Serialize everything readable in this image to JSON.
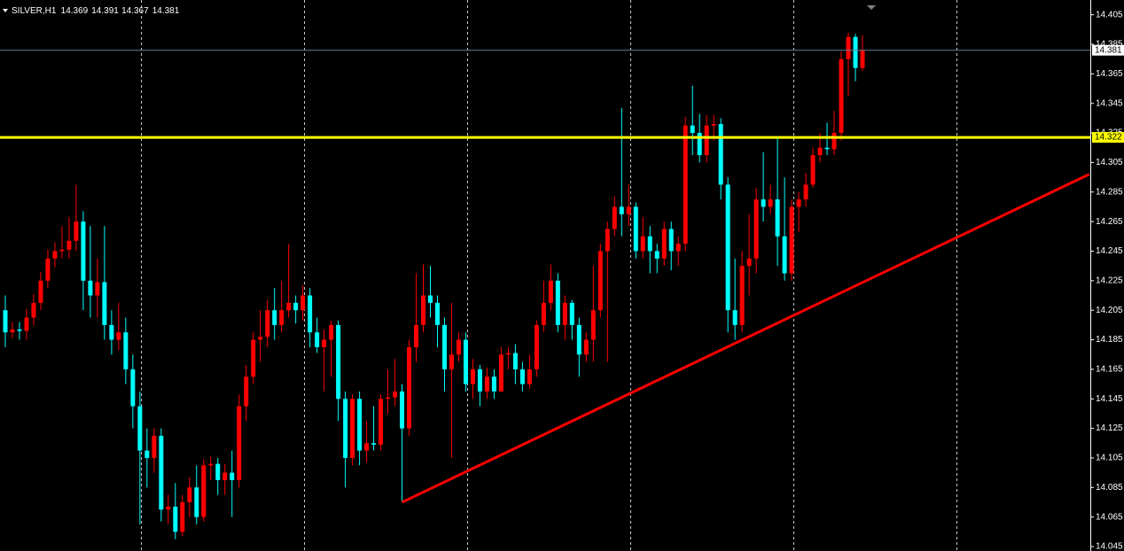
{
  "chart_data": {
    "type": "candlestick",
    "symbol": "SILVER,H1",
    "open": [
      14.205,
      14.19,
      14.192,
      14.191,
      14.2,
      14.21,
      14.225,
      14.24,
      14.245,
      14.246,
      14.252,
      14.265,
      14.225,
      14.215,
      14.224,
      14.195,
      14.185,
      14.19,
      14.165,
      14.14,
      14.11,
      14.105,
      14.12,
      14.07,
      14.072,
      14.055,
      14.075,
      14.085,
      14.065,
      14.1,
      14.101,
      14.09,
      14.095,
      14.09,
      14.14,
      14.16,
      14.185,
      14.187,
      14.205,
      14.195,
      14.205,
      14.21,
      14.205,
      14.215,
      14.19,
      14.18,
      14.185,
      14.195,
      14.145,
      14.105,
      14.145,
      14.11,
      14.115,
      14.114,
      14.145,
      14.146,
      14.15,
      14.125,
      14.18,
      14.195,
      14.215,
      14.21,
      14.195,
      14.165,
      14.175,
      14.185,
      14.155,
      14.165,
      14.15,
      14.16,
      14.15,
      14.175,
      14.176,
      14.165,
      14.155,
      14.165,
      14.195,
      14.21,
      14.225,
      14.195,
      14.21,
      14.195,
      14.175,
      14.185,
      14.205,
      14.245,
      14.26,
      14.275,
      14.27,
      14.275,
      14.245,
      14.255,
      14.245,
      14.24,
      14.26,
      14.245,
      14.25,
      14.33,
      14.325,
      14.31,
      14.33,
      14.331,
      14.29,
      14.205,
      14.195,
      14.235,
      14.24,
      14.28,
      14.275,
      14.28,
      14.255,
      14.23,
      14.275,
      14.28,
      14.29,
      14.31,
      14.315,
      14.314,
      14.325,
      14.375,
      14.39,
      14.369
    ],
    "high": [
      14.215,
      14.197,
      14.197,
      14.206,
      14.216,
      14.231,
      14.246,
      14.251,
      14.262,
      14.268,
      14.29,
      14.272,
      14.262,
      14.24,
      14.262,
      14.205,
      14.21,
      14.2,
      14.175,
      14.15,
      14.125,
      14.125,
      14.125,
      14.08,
      14.088,
      14.08,
      14.092,
      14.1,
      14.104,
      14.106,
      14.105,
      14.101,
      14.11,
      14.148,
      14.168,
      14.19,
      14.205,
      14.212,
      14.22,
      14.225,
      14.25,
      14.215,
      14.222,
      14.22,
      14.2,
      14.192,
      14.198,
      14.198,
      14.15,
      14.148,
      14.15,
      14.13,
      14.14,
      14.148,
      14.165,
      14.172,
      14.155,
      14.185,
      14.23,
      14.236,
      14.235,
      14.215,
      14.2,
      14.21,
      14.19,
      14.19,
      14.172,
      14.168,
      14.166,
      14.165,
      14.18,
      14.18,
      14.182,
      14.17,
      14.175,
      14.198,
      14.225,
      14.236,
      14.23,
      14.215,
      14.212,
      14.2,
      14.19,
      14.235,
      14.25,
      14.265,
      14.282,
      14.342,
      14.29,
      14.278,
      14.268,
      14.262,
      14.25,
      14.265,
      14.265,
      14.255,
      14.336,
      14.357,
      14.338,
      14.337,
      14.337,
      14.335,
      14.295,
      14.24,
      14.245,
      14.27,
      14.288,
      14.312,
      14.29,
      14.322,
      14.295,
      14.28,
      14.285,
      14.298,
      14.315,
      14.325,
      14.332,
      14.34,
      14.38,
      14.393,
      14.392,
      14.391
    ],
    "low": [
      14.18,
      14.186,
      14.185,
      14.185,
      14.195,
      14.205,
      14.22,
      14.234,
      14.24,
      14.24,
      14.245,
      14.205,
      14.2,
      14.2,
      14.185,
      14.175,
      14.178,
      14.155,
      14.125,
      14.06,
      14.085,
      14.095,
      14.062,
      14.06,
      14.05,
      14.052,
      14.065,
      14.06,
      14.062,
      14.09,
      14.08,
      14.08,
      14.065,
      14.085,
      14.13,
      14.155,
      14.17,
      14.18,
      14.185,
      14.19,
      14.2,
      14.196,
      14.198,
      14.18,
      14.176,
      14.15,
      14.16,
      14.13,
      14.085,
      14.1,
      14.1,
      14.102,
      14.11,
      14.11,
      14.135,
      14.14,
      14.075,
      14.12,
      14.17,
      14.19,
      14.2,
      14.18,
      14.15,
      14.105,
      14.17,
      14.15,
      14.145,
      14.14,
      14.145,
      14.145,
      14.15,
      14.165,
      14.155,
      14.15,
      14.152,
      14.16,
      14.19,
      14.205,
      14.19,
      14.185,
      14.185,
      14.16,
      14.17,
      14.17,
      14.2,
      14.17,
      14.255,
      14.255,
      14.262,
      14.24,
      14.24,
      14.23,
      14.23,
      14.235,
      14.232,
      14.235,
      14.245,
      14.31,
      14.305,
      14.305,
      14.32,
      14.28,
      14.19,
      14.185,
      14.19,
      14.215,
      14.23,
      14.265,
      14.27,
      14.235,
      14.225,
      14.225,
      14.258,
      14.275,
      14.288,
      14.305,
      14.31,
      14.31,
      14.32,
      14.35,
      14.36,
      14.367
    ],
    "close": [
      14.19,
      14.192,
      14.191,
      14.2,
      14.21,
      14.225,
      14.24,
      14.245,
      14.246,
      14.252,
      14.265,
      14.225,
      14.215,
      14.224,
      14.195,
      14.185,
      14.19,
      14.165,
      14.14,
      14.11,
      14.105,
      14.12,
      14.07,
      14.072,
      14.055,
      14.075,
      14.085,
      14.065,
      14.1,
      14.101,
      14.09,
      14.095,
      14.09,
      14.14,
      14.16,
      14.185,
      14.187,
      14.205,
      14.195,
      14.205,
      14.21,
      14.205,
      14.215,
      14.19,
      14.18,
      14.185,
      14.195,
      14.145,
      14.105,
      14.145,
      14.11,
      14.115,
      14.114,
      14.145,
      14.146,
      14.15,
      14.125,
      14.18,
      14.195,
      14.215,
      14.21,
      14.195,
      14.165,
      14.175,
      14.185,
      14.155,
      14.165,
      14.15,
      14.16,
      14.15,
      14.175,
      14.176,
      14.165,
      14.155,
      14.165,
      14.195,
      14.21,
      14.225,
      14.195,
      14.21,
      14.195,
      14.175,
      14.185,
      14.205,
      14.245,
      14.26,
      14.275,
      14.27,
      14.275,
      14.245,
      14.255,
      14.245,
      14.24,
      14.26,
      14.245,
      14.25,
      14.33,
      14.325,
      14.31,
      14.33,
      14.331,
      14.29,
      14.205,
      14.195,
      14.235,
      14.24,
      14.28,
      14.275,
      14.28,
      14.255,
      14.23,
      14.275,
      14.28,
      14.29,
      14.31,
      14.315,
      14.314,
      14.325,
      14.375,
      14.39,
      14.369,
      14.381
    ],
    "up_color": "#ff0000",
    "down_color": "#00ffff",
    "ylim": [
      14.042,
      14.415
    ],
    "yticks": [
      14.405,
      14.385,
      14.365,
      14.345,
      14.325,
      14.305,
      14.285,
      14.265,
      14.245,
      14.225,
      14.205,
      14.185,
      14.165,
      14.145,
      14.125,
      14.105,
      14.085,
      14.065,
      14.045
    ],
    "hlines": [
      {
        "value": 14.322,
        "color": "#ffff00"
      }
    ],
    "trendline": {
      "x": [
        56,
        153
      ],
      "y": [
        14.075,
        14.297
      ],
      "color": "#ff0000"
    },
    "grid": true
  }
}
